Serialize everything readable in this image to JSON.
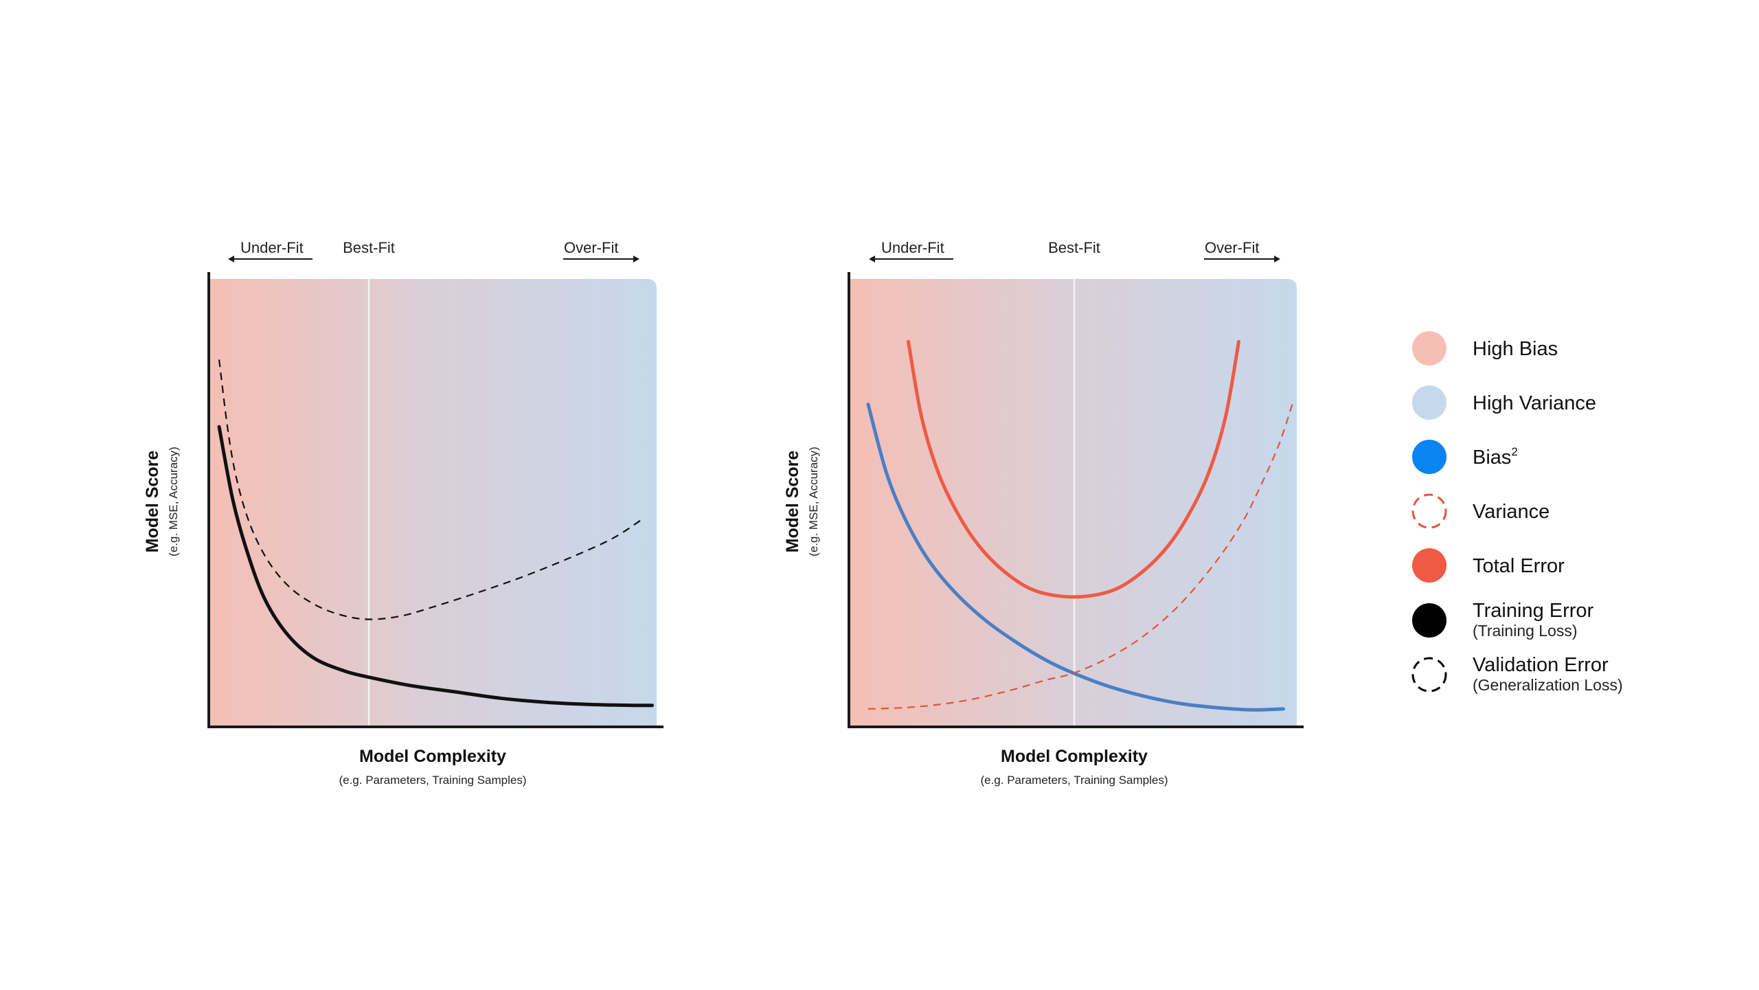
{
  "fit_labels": {
    "under_fit": "Under-Fit",
    "best_fit": "Best-Fit",
    "over_fit": "Over-Fit"
  },
  "axes": {
    "y_title": "Model Score",
    "y_sub": "(e.g. MSE, Accuracy)",
    "x_title": "Model Complexity",
    "x_sub": "(e.g. Parameters, Training Samples)"
  },
  "colors": {
    "high_bias": "#f5bfb5",
    "high_variance": "#c6d8ec",
    "bias_squared": "#0a84f0",
    "bias_curve": "#4a7fc4",
    "variance": "#e3533c",
    "total_error": "#ef5a45",
    "training_error": "#111111",
    "validation_error": "#111111",
    "best_fit_line": "#f3f3f3",
    "axis": "#1a1a1a"
  },
  "legend": [
    {
      "key": "high-bias",
      "label": "High Bias",
      "sub": "",
      "swatch": "filled",
      "color": "#f5bfb5"
    },
    {
      "key": "high-variance",
      "label": "High Variance",
      "sub": "",
      "swatch": "filled",
      "color": "#c6d8ec"
    },
    {
      "key": "bias-squared",
      "label": "Bias",
      "sup": "2",
      "sub": "",
      "swatch": "filled",
      "color": "#0a84f0"
    },
    {
      "key": "variance",
      "label": "Variance",
      "sub": "",
      "swatch": "dashed",
      "color": "#e3533c"
    },
    {
      "key": "total-error",
      "label": "Total Error",
      "sub": "",
      "swatch": "filled",
      "color": "#ef5a45"
    },
    {
      "key": "training-error",
      "label": "Training Error",
      "sub": "(Training Loss)",
      "swatch": "filled",
      "color": "#000000"
    },
    {
      "key": "validation-error",
      "label": "Validation Error",
      "sub": "(Generalization Loss)",
      "swatch": "dashed",
      "color": "#000000"
    }
  ],
  "chart_data": [
    {
      "type": "line",
      "title": "",
      "xlabel": "Model Complexity",
      "xlabel_sub": "(e.g. Parameters, Training Samples)",
      "ylabel": "Model Score",
      "ylabel_sub": "(e.g. MSE, Accuracy)",
      "xlim": [
        0,
        1
      ],
      "ylim": [
        0,
        1
      ],
      "best_fit_x": 0.36,
      "background_gradient": [
        "High Bias",
        "High Variance"
      ],
      "series": [
        {
          "name": "Training Error",
          "style": "solid",
          "color": "#111111",
          "x": [
            0.02,
            0.05,
            0.08,
            0.12,
            0.17,
            0.23,
            0.3,
            0.36,
            0.45,
            0.55,
            0.65,
            0.75,
            0.85,
            0.95,
            0.99
          ],
          "y": [
            0.67,
            0.51,
            0.4,
            0.29,
            0.21,
            0.155,
            0.125,
            0.11,
            0.092,
            0.078,
            0.064,
            0.055,
            0.05,
            0.048,
            0.048
          ]
        },
        {
          "name": "Validation Error",
          "style": "dashed",
          "color": "#111111",
          "x": [
            0.02,
            0.04,
            0.06,
            0.09,
            0.13,
            0.18,
            0.24,
            0.3,
            0.36,
            0.43,
            0.5,
            0.6,
            0.7,
            0.8,
            0.9,
            0.97
          ],
          "y": [
            0.82,
            0.66,
            0.55,
            0.45,
            0.37,
            0.31,
            0.27,
            0.248,
            0.24,
            0.248,
            0.268,
            0.3,
            0.335,
            0.375,
            0.42,
            0.465
          ]
        }
      ]
    },
    {
      "type": "line",
      "title": "",
      "xlabel": "Model Complexity",
      "xlabel_sub": "(e.g. Parameters, Training Samples)",
      "ylabel": "Model Score",
      "ylabel_sub": "(e.g. MSE, Accuracy)",
      "xlim": [
        0,
        1
      ],
      "ylim": [
        0,
        1
      ],
      "best_fit_x": 0.5,
      "background_gradient": [
        "High Bias",
        "High Variance"
      ],
      "series": [
        {
          "name": "Bias²",
          "style": "solid",
          "color": "#4a7fc4",
          "x": [
            0.04,
            0.08,
            0.12,
            0.17,
            0.23,
            0.3,
            0.37,
            0.44,
            0.5,
            0.58,
            0.66,
            0.74,
            0.82,
            0.9,
            0.97
          ],
          "y": [
            0.72,
            0.57,
            0.47,
            0.38,
            0.305,
            0.24,
            0.19,
            0.148,
            0.12,
            0.09,
            0.068,
            0.052,
            0.043,
            0.038,
            0.04
          ]
        },
        {
          "name": "Variance",
          "style": "dashed",
          "color": "#e3533c",
          "x": [
            0.04,
            0.12,
            0.2,
            0.28,
            0.36,
            0.44,
            0.5,
            0.58,
            0.66,
            0.74,
            0.82,
            0.88,
            0.92,
            0.96,
            0.99
          ],
          "y": [
            0.04,
            0.043,
            0.05,
            0.063,
            0.082,
            0.105,
            0.12,
            0.155,
            0.205,
            0.275,
            0.37,
            0.46,
            0.54,
            0.63,
            0.72
          ]
        },
        {
          "name": "Total Error",
          "style": "solid",
          "color": "#ef5a45",
          "x": [
            0.13,
            0.16,
            0.2,
            0.25,
            0.3,
            0.36,
            0.42,
            0.5,
            0.58,
            0.64,
            0.7,
            0.75,
            0.8,
            0.84,
            0.87
          ],
          "y": [
            0.86,
            0.69,
            0.56,
            0.46,
            0.39,
            0.335,
            0.302,
            0.29,
            0.302,
            0.335,
            0.39,
            0.46,
            0.56,
            0.69,
            0.86
          ]
        }
      ]
    }
  ]
}
